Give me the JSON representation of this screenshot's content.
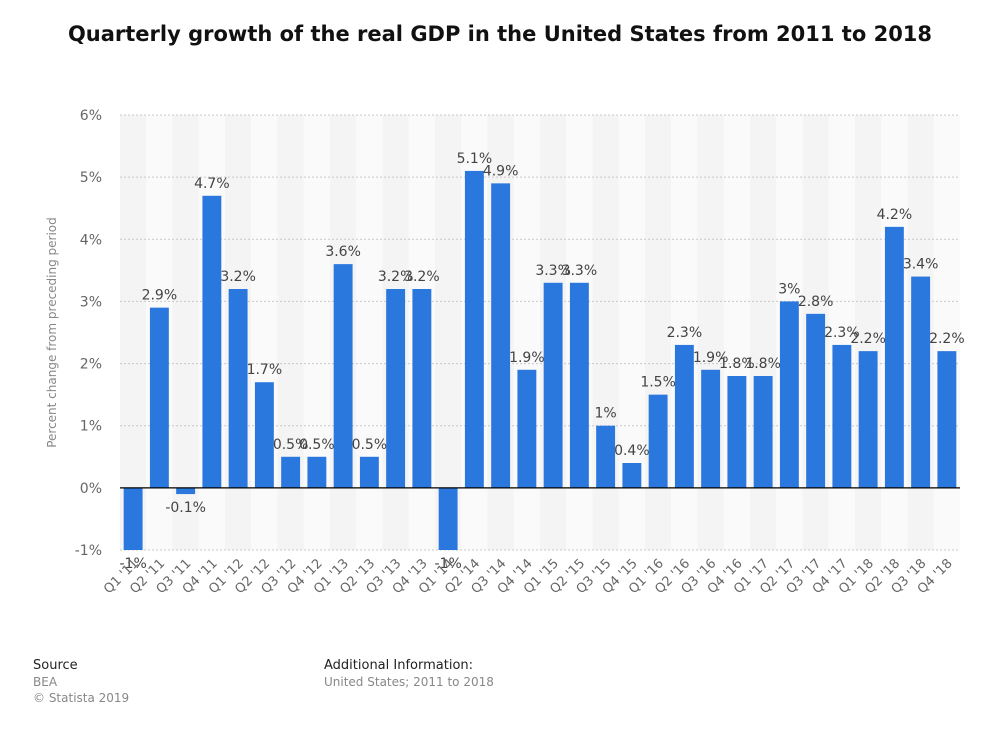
{
  "chart_data": {
    "type": "bar",
    "title": "Quarterly growth of the real GDP in the United States from 2011 to 2018",
    "ylabel": "Percent change from preceding period",
    "xlabel": "",
    "ylim": [
      -1,
      6
    ],
    "yticks": [
      "-1%",
      "0%",
      "1%",
      "2%",
      "3%",
      "4%",
      "5%",
      "6%"
    ],
    "grid": true,
    "bar_color": "#2a77de",
    "categories": [
      "Q1 '11",
      "Q2 '11",
      "Q3 '11",
      "Q4 '11",
      "Q1 '12",
      "Q2 '12",
      "Q3 '12",
      "Q4 '12",
      "Q1 '13",
      "Q2 '13",
      "Q3 '13",
      "Q4 '13",
      "Q1 '14",
      "Q2 '14",
      "Q3 '14",
      "Q4 '14",
      "Q1 '15",
      "Q2 '15",
      "Q3 '15",
      "Q4 '15",
      "Q1 '16",
      "Q2 '16",
      "Q3 '16",
      "Q4 '16",
      "Q1 '17",
      "Q2 '17",
      "Q3 '17",
      "Q4 '17",
      "Q1 '18",
      "Q2 '18",
      "Q3 '18",
      "Q4 '18"
    ],
    "values": [
      -1,
      2.9,
      -0.1,
      4.7,
      3.2,
      1.7,
      0.5,
      0.5,
      3.6,
      0.5,
      3.2,
      3.2,
      -1,
      5.1,
      4.9,
      1.9,
      3.3,
      3.3,
      1,
      0.4,
      1.5,
      2.3,
      1.9,
      1.8,
      1.8,
      3,
      2.8,
      2.3,
      2.2,
      4.2,
      3.4,
      2.2
    ],
    "data_labels": [
      "-1%",
      "2.9%",
      "-0.1%",
      "4.7%",
      "3.2%",
      "1.7%",
      "0.5%",
      "0.5%",
      "3.6%",
      "0.5%",
      "3.2%",
      "3.2%",
      "-1%",
      "5.1%",
      "4.9%",
      "1.9%",
      "3.3%",
      "3.3%",
      "1%",
      "0.4%",
      "1.5%",
      "2.3%",
      "1.9%",
      "1.8%",
      "1.8%",
      "3%",
      "2.8%",
      "2.3%",
      "2.2%",
      "4.2%",
      "3.4%",
      "2.2%"
    ]
  },
  "footer": {
    "source_heading": "Source",
    "source_name": "BEA",
    "copyright": "© Statista 2019",
    "additional_heading": "Additional Information:",
    "additional_text": "United States; 2011 to 2018"
  }
}
